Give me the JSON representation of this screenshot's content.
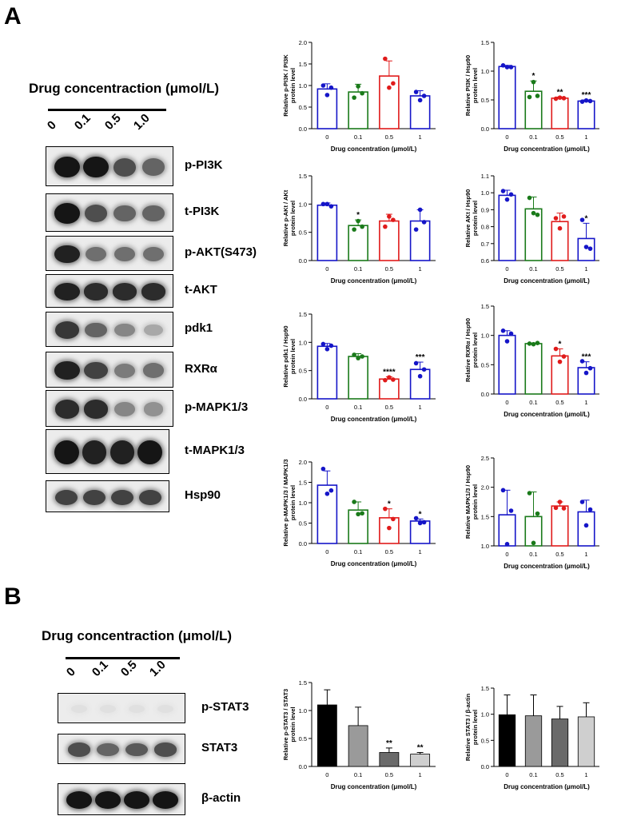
{
  "panel_a": {
    "letter": "A",
    "drug_title": "Drug concentraction (μmol/L)",
    "lanes": [
      "0",
      "0.1",
      "0.5",
      "1.0"
    ],
    "blots": [
      {
        "label": "p-PI3K",
        "band_intensity": [
          0.95,
          0.95,
          0.7,
          0.6
        ]
      },
      {
        "label": "t-PI3K",
        "band_intensity": [
          0.95,
          0.7,
          0.6,
          0.6
        ]
      },
      {
        "label": "p-AKT(S473)",
        "band_intensity": [
          0.9,
          0.55,
          0.55,
          0.55
        ]
      },
      {
        "label": "t-AKT",
        "band_intensity": [
          0.9,
          0.85,
          0.85,
          0.85
        ]
      },
      {
        "label": "pdk1",
        "band_intensity": [
          0.8,
          0.6,
          0.45,
          0.3
        ]
      },
      {
        "label": "RXRα",
        "band_intensity": [
          0.9,
          0.75,
          0.5,
          0.55
        ]
      },
      {
        "label": "p-MAPK1/3",
        "band_intensity": [
          0.85,
          0.85,
          0.45,
          0.4
        ]
      },
      {
        "label": "t-MAPK1/3",
        "band_intensity": [
          0.95,
          0.9,
          0.9,
          0.95
        ]
      },
      {
        "label": "Hsp90",
        "band_intensity": [
          0.75,
          0.75,
          0.75,
          0.75
        ]
      }
    ]
  },
  "panel_b": {
    "letter": "B",
    "drug_title": "Drug concentraction (μmol/L)",
    "lanes": [
      "0",
      "0.1",
      "0.5",
      "1.0"
    ],
    "blots": [
      {
        "label": "p-STAT3",
        "band_intensity": [
          0.05,
          0.05,
          0.05,
          0.05
        ]
      },
      {
        "label": "STAT3",
        "band_intensity": [
          0.7,
          0.6,
          0.65,
          0.7
        ]
      },
      {
        "label": "β-actin",
        "band_intensity": [
          0.95,
          0.95,
          0.95,
          0.95
        ]
      }
    ]
  },
  "colors": {
    "c0": "#1515c8",
    "c01": "#1a7a1a",
    "c05": "#e01b1b",
    "c1": "#1515c8"
  },
  "chart_data": [
    {
      "id": "p-pi3k",
      "type": "bar",
      "xlabel": "Drug concentration (μmol/L)",
      "ylabel": [
        "Relative p-PI3K / PI3K",
        "protein level"
      ],
      "categories": [
        "0",
        "0.1",
        "0.5",
        "1"
      ],
      "ylim": [
        0,
        2.0
      ],
      "yticks": [
        "0.0",
        "0.5",
        "1.0",
        "1.5",
        "2.0"
      ],
      "values": [
        0.92,
        0.85,
        1.22,
        0.76
      ],
      "errors": [
        0.12,
        0.18,
        0.35,
        0.12
      ],
      "points": [
        [
          1.0,
          0.78,
          0.95
        ],
        [
          0.72,
          0.98,
          0.82
        ],
        [
          1.62,
          0.95,
          1.05
        ],
        [
          0.85,
          0.66,
          0.76
        ]
      ],
      "sig": [
        "",
        "",
        "",
        ""
      ],
      "style": "open"
    },
    {
      "id": "pi3k",
      "type": "bar",
      "xlabel": "Drug concentration (μmol/L)",
      "ylabel": [
        "Relative PI3K / Hsp90",
        "protein level"
      ],
      "categories": [
        "0",
        "0.1",
        "0.5",
        "1"
      ],
      "ylim": [
        0,
        1.5
      ],
      "yticks": [
        "0.0",
        "0.5",
        "1.0",
        "1.5"
      ],
      "values": [
        1.08,
        0.65,
        0.53,
        0.48
      ],
      "errors": [
        0.02,
        0.18,
        0.02,
        0.02
      ],
      "points": [
        [
          1.1,
          1.07,
          1.07
        ],
        [
          0.55,
          0.81,
          0.57
        ],
        [
          0.52,
          0.54,
          0.53
        ],
        [
          0.47,
          0.49,
          0.48
        ]
      ],
      "sig": [
        "",
        "*",
        "**",
        "***"
      ],
      "style": "open"
    },
    {
      "id": "p-akt",
      "type": "bar",
      "xlabel": "Drug concentration (μmol/L)",
      "ylabel": [
        "Relative p-AKt / AKt",
        "protein level"
      ],
      "categories": [
        "0",
        "0.1",
        "0.5",
        "1"
      ],
      "ylim": [
        0,
        1.5
      ],
      "yticks": [
        "0.0",
        "0.5",
        "1.0",
        "1.5"
      ],
      "values": [
        0.98,
        0.62,
        0.7,
        0.7
      ],
      "errors": [
        0.04,
        0.1,
        0.12,
        0.2
      ],
      "points": [
        [
          1.0,
          1.0,
          0.96
        ],
        [
          0.55,
          0.7,
          0.6
        ],
        [
          0.6,
          0.78,
          0.72
        ],
        [
          0.55,
          0.9,
          0.68
        ]
      ],
      "sig": [
        "",
        "*",
        "",
        ""
      ],
      "style": "open"
    },
    {
      "id": "akt",
      "type": "bar",
      "xlabel": "Drug concentration (μmol/L)",
      "ylabel": [
        "Relative AKt / Hsp90",
        "protein level"
      ],
      "categories": [
        "0",
        "0.1",
        "0.5",
        "1"
      ],
      "ylim": [
        0.6,
        1.1
      ],
      "yticks": [
        "0.6",
        "0.7",
        "0.8",
        "0.9",
        "1.0",
        "1.1"
      ],
      "values": [
        0.985,
        0.905,
        0.83,
        0.73
      ],
      "errors": [
        0.03,
        0.07,
        0.05,
        0.09
      ],
      "points": [
        [
          1.01,
          0.96,
          0.99
        ],
        [
          0.97,
          0.88,
          0.87
        ],
        [
          0.85,
          0.79,
          0.86
        ],
        [
          0.84,
          0.68,
          0.67
        ]
      ],
      "sig": [
        "",
        "",
        "",
        "*"
      ],
      "style": "open"
    },
    {
      "id": "pdk1",
      "type": "bar",
      "xlabel": "Drug concentration (μmol/L)",
      "ylabel": [
        "Relative pdk1 / Hsp90",
        "protein level"
      ],
      "categories": [
        "0",
        "0.1",
        "0.5",
        "1"
      ],
      "ylim": [
        0,
        1.5
      ],
      "yticks": [
        "0.0",
        "0.5",
        "1.0",
        "1.5"
      ],
      "values": [
        0.93,
        0.75,
        0.35,
        0.52
      ],
      "errors": [
        0.05,
        0.05,
        0.04,
        0.13
      ],
      "points": [
        [
          0.97,
          0.88,
          0.94
        ],
        [
          0.78,
          0.72,
          0.75
        ],
        [
          0.33,
          0.38,
          0.34
        ],
        [
          0.63,
          0.4,
          0.52
        ]
      ],
      "sig": [
        "",
        "",
        "****",
        "***"
      ],
      "style": "open"
    },
    {
      "id": "rxra",
      "type": "bar",
      "xlabel": "Drug concentration (μmol/L)",
      "ylabel": [
        "Relative RXRα / Hsp90",
        "protein level"
      ],
      "categories": [
        "0",
        "0.1",
        "0.5",
        "1"
      ],
      "ylim": [
        0,
        1.5
      ],
      "yticks": [
        "0.0",
        "0.5",
        "1.0",
        "1.5"
      ],
      "values": [
        1.0,
        0.86,
        0.65,
        0.45
      ],
      "errors": [
        0.08,
        0.01,
        0.12,
        0.1
      ],
      "points": [
        [
          1.08,
          0.9,
          1.03
        ],
        [
          0.86,
          0.85,
          0.87
        ],
        [
          0.77,
          0.55,
          0.64
        ],
        [
          0.56,
          0.36,
          0.44
        ]
      ],
      "sig": [
        "",
        "",
        "*",
        "***"
      ],
      "style": "open"
    },
    {
      "id": "p-mapk",
      "type": "bar",
      "xlabel": "Drug concentration (μmol/L)",
      "ylabel": [
        "Relative p-MAPK1/3 / MAPK1/3",
        "protein level"
      ],
      "categories": [
        "0",
        "0.1",
        "0.5",
        "1"
      ],
      "ylim": [
        0,
        2.0
      ],
      "yticks": [
        "0.0",
        "0.5",
        "1.0",
        "1.5",
        "2.0"
      ],
      "values": [
        1.43,
        0.82,
        0.63,
        0.55
      ],
      "errors": [
        0.35,
        0.2,
        0.22,
        0.05
      ],
      "points": [
        [
          1.83,
          1.22,
          1.3
        ],
        [
          1.02,
          0.72,
          0.74
        ],
        [
          0.85,
          0.38,
          0.6
        ],
        [
          0.62,
          0.5,
          0.52
        ]
      ],
      "sig": [
        "",
        "",
        "*",
        "*"
      ],
      "style": "open"
    },
    {
      "id": "mapk",
      "type": "bar",
      "xlabel": "Drug concentration (μmol/L)",
      "ylabel": [
        "Relative MAPK1/3 / Hsp90",
        "protein level"
      ],
      "categories": [
        "0",
        "0.1",
        "0.5",
        "1"
      ],
      "ylim": [
        1.0,
        2.5
      ],
      "yticks": [
        "1.0",
        "1.5",
        "2.0",
        "2.5"
      ],
      "values": [
        1.53,
        1.5,
        1.68,
        1.58
      ],
      "errors": [
        0.42,
        0.42,
        0.07,
        0.2
      ],
      "points": [
        [
          1.95,
          1.03,
          1.6
        ],
        [
          1.9,
          1.05,
          1.55
        ],
        [
          1.65,
          1.75,
          1.64
        ],
        [
          1.75,
          1.35,
          1.62
        ]
      ],
      "sig": [
        "",
        "",
        "",
        ""
      ],
      "style": "open"
    },
    {
      "id": "p-stat3",
      "type": "bar",
      "xlabel": "Drug concentration (μmol/L)",
      "ylabel": [
        "Relative p-STAT3 / STAT3",
        "protein level"
      ],
      "categories": [
        "0",
        "0.1",
        "0.5",
        "1"
      ],
      "ylim": [
        0,
        1.5
      ],
      "yticks": [
        "0.0",
        "0.5",
        "1.0",
        "1.5"
      ],
      "values": [
        1.1,
        0.73,
        0.25,
        0.22
      ],
      "errors": [
        0.27,
        0.33,
        0.08,
        0.03
      ],
      "points": [],
      "sig": [
        "",
        "",
        "**",
        "**"
      ],
      "style": "filled",
      "fills": [
        "#000000",
        "#9a9a9a",
        "#6a6a6a",
        "#cfcfcf"
      ]
    },
    {
      "id": "stat3",
      "type": "bar",
      "xlabel": "Drug concentration (μmol/L)",
      "ylabel": [
        "Relative STAT3 / β-actin",
        "protein level"
      ],
      "categories": [
        "0",
        "0.1",
        "0.5",
        "1"
      ],
      "ylim": [
        0,
        1.5
      ],
      "yticks": [
        "0.0",
        "0.5",
        "1.0",
        "1.5"
      ],
      "values": [
        0.99,
        0.97,
        0.91,
        0.95
      ],
      "errors": [
        0.38,
        0.4,
        0.24,
        0.27
      ],
      "points": [],
      "sig": [
        "",
        "",
        "",
        ""
      ],
      "style": "filled",
      "fills": [
        "#000000",
        "#9a9a9a",
        "#6a6a6a",
        "#cfcfcf"
      ]
    }
  ]
}
